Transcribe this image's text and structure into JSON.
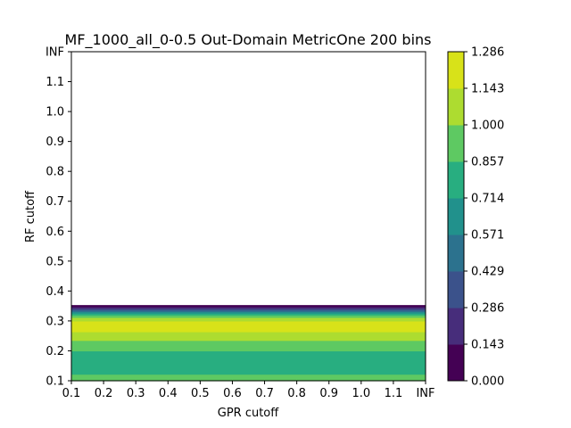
{
  "chart_data": {
    "type": "heatmap",
    "title": "MF_1000_all_0-0.5 Out-Domain MetricOne 200 bins",
    "xlabel": "GPR cutoff",
    "ylabel": "RF cutoff",
    "x_ticks": [
      "0.1",
      "0.2",
      "0.3",
      "0.4",
      "0.5",
      "0.6",
      "0.7",
      "0.8",
      "0.9",
      "1.0",
      "1.1",
      "INF"
    ],
    "y_ticks": [
      "0.1",
      "0.2",
      "0.3",
      "0.4",
      "0.5",
      "0.6",
      "0.7",
      "0.8",
      "0.9",
      "1.0",
      "1.1",
      "INF"
    ],
    "colorbar": {
      "levels": [
        "0.000",
        "0.143",
        "0.286",
        "0.429",
        "0.571",
        "0.714",
        "0.857",
        "1.000",
        "1.143",
        "1.286"
      ],
      "colors": [
        "#440154",
        "#472d7b",
        "#3b528b",
        "#2c728e",
        "#21918c",
        "#28ae80",
        "#5ec962",
        "#addc30",
        "#d8e219"
      ]
    },
    "bands": [
      {
        "y_from": 0.1,
        "y_to": 0.122,
        "level_index": 6
      },
      {
        "y_from": 0.122,
        "y_to": 0.2,
        "level_index": 5
      },
      {
        "y_from": 0.2,
        "y_to": 0.235,
        "level_index": 6
      },
      {
        "y_from": 0.235,
        "y_to": 0.264,
        "level_index": 7
      },
      {
        "y_from": 0.264,
        "y_to": 0.3,
        "level_index": 8
      },
      {
        "y_from": 0.3,
        "y_to": 0.312,
        "level_index": 7
      },
      {
        "y_from": 0.312,
        "y_to": 0.32,
        "level_index": 6
      },
      {
        "y_from": 0.32,
        "y_to": 0.326,
        "level_index": 5
      },
      {
        "y_from": 0.326,
        "y_to": 0.331,
        "level_index": 4
      },
      {
        "y_from": 0.331,
        "y_to": 0.336,
        "level_index": 3
      },
      {
        "y_from": 0.336,
        "y_to": 0.341,
        "level_index": 2
      },
      {
        "y_from": 0.341,
        "y_to": 0.347,
        "level_index": 1
      },
      {
        "y_from": 0.347,
        "y_to": 0.353,
        "level_index": 0
      }
    ]
  }
}
